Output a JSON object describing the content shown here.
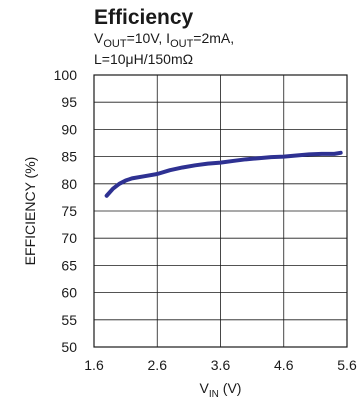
{
  "chart_data": {
    "type": "line",
    "title": "Efficiency",
    "subtitle": {
      "line1": "VOUT=10V, IOUT=2mA,",
      "line2": "L=10μH/150mΩ"
    },
    "xlabel": "VIN (V)",
    "ylabel": "EFFICIENCY (%)",
    "xlim": [
      1.6,
      5.6
    ],
    "ylim": [
      50,
      100
    ],
    "x_ticks": [
      1.6,
      2.6,
      3.6,
      4.6,
      5.6
    ],
    "y_ticks": [
      50,
      55,
      60,
      65,
      70,
      75,
      80,
      85,
      90,
      95,
      100
    ],
    "grid": true,
    "series": [
      {
        "color": "#2e3192",
        "x": [
          1.8,
          1.9,
          2.0,
          2.1,
          2.2,
          2.4,
          2.6,
          2.8,
          3.0,
          3.2,
          3.4,
          3.6,
          3.8,
          4.0,
          4.2,
          4.4,
          4.6,
          4.8,
          5.0,
          5.2,
          5.4,
          5.5
        ],
        "y": [
          77.8,
          79.1,
          80.0,
          80.6,
          81.0,
          81.4,
          81.8,
          82.5,
          83.0,
          83.4,
          83.7,
          83.9,
          84.2,
          84.5,
          84.7,
          84.9,
          85.0,
          85.2,
          85.4,
          85.5,
          85.5,
          85.7
        ]
      }
    ]
  }
}
